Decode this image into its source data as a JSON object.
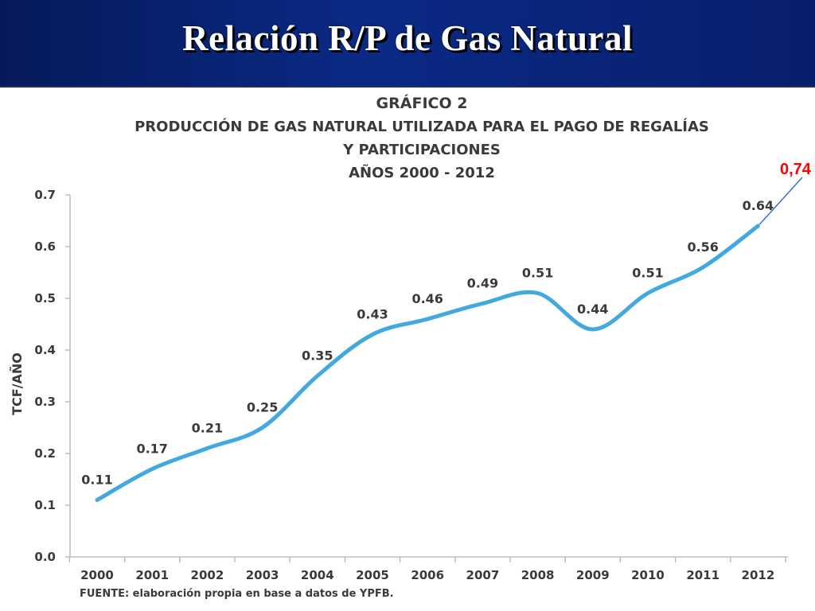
{
  "slide": {
    "title": "Relación R/P de Gas Natural"
  },
  "chart_data": {
    "type": "line",
    "title_lines": [
      "GRÁFICO 2",
      "PRODUCCIÓN DE GAS NATURAL UTILIZADA PARA EL PAGO DE REGALÍAS",
      "Y PARTICIPACIONES",
      "AÑOS 2000 - 2012"
    ],
    "xlabel": "",
    "ylabel": "TCF/AÑO",
    "categories": [
      "2000",
      "2001",
      "2002",
      "2003",
      "2004",
      "2005",
      "2006",
      "2007",
      "2008",
      "2009",
      "2010",
      "2011",
      "2012"
    ],
    "values": [
      0.11,
      0.17,
      0.21,
      0.25,
      0.35,
      0.43,
      0.46,
      0.49,
      0.51,
      0.44,
      0.51,
      0.56,
      0.64
    ],
    "data_labels": [
      "0.11",
      "0.17",
      "0.21",
      "0.25",
      "0.35",
      "0.43",
      "0.46",
      "0.49",
      "0.51",
      "0.44",
      "0.51",
      "0.56",
      "0.64"
    ],
    "y_ticks": [
      "0.0",
      "0.1",
      "0.2",
      "0.3",
      "0.4",
      "0.5",
      "0.6",
      "0.7"
    ],
    "ylim": [
      0,
      0.7
    ],
    "grid": false,
    "line_color": "#41a8e0",
    "source": "FUENTE: elaboración propia en base a datos de YPFB.",
    "annotation": {
      "text": "0,74",
      "value": 0.74,
      "color": "#ff0000"
    }
  }
}
